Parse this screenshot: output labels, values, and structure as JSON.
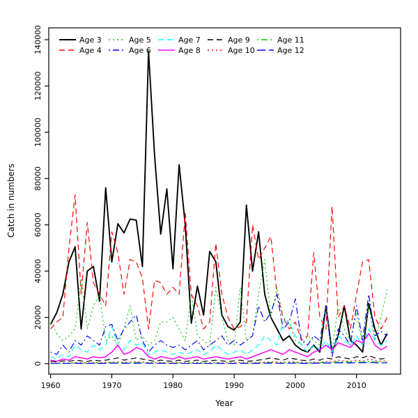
{
  "chart_data": {
    "type": "line",
    "title": "",
    "xlabel": "Year",
    "ylabel": "Catch in numbers",
    "xlim": [
      1960,
      2015
    ],
    "ylim": [
      0,
      140000
    ],
    "grid": false,
    "legend_position": "top-left",
    "x_ticks": [
      1960,
      1970,
      1980,
      1990,
      2000,
      2010
    ],
    "y_ticks": [
      0,
      20000,
      40000,
      60000,
      80000,
      100000,
      120000,
      140000
    ],
    "x": [
      1960,
      1961,
      1962,
      1963,
      1964,
      1965,
      1966,
      1967,
      1968,
      1969,
      1970,
      1971,
      1972,
      1973,
      1974,
      1975,
      1976,
      1977,
      1978,
      1979,
      1980,
      1981,
      1982,
      1983,
      1984,
      1985,
      1986,
      1987,
      1988,
      1989,
      1990,
      1991,
      1992,
      1993,
      1994,
      1995,
      1996,
      1997,
      1998,
      1999,
      2000,
      2001,
      2002,
      2003,
      2004,
      2005,
      2006,
      2007,
      2008,
      2009,
      2010,
      2011,
      2012,
      2013,
      2014,
      2015
    ],
    "series": [
      {
        "name": "Age 3",
        "color": "#000000",
        "dash": "solid",
        "values": [
          17000,
          22000,
          30000,
          44000,
          50500,
          15000,
          40000,
          42000,
          27000,
          76000,
          44000,
          60500,
          56500,
          62500,
          62000,
          42000,
          135000,
          90000,
          56000,
          75500,
          41000,
          86000,
          60000,
          17500,
          33500,
          21000,
          48500,
          44000,
          21000,
          16000,
          14500,
          18000,
          68500,
          40000,
          57000,
          30000,
          20000,
          15000,
          10000,
          12000,
          8000,
          6000,
          5000,
          8000,
          5000,
          25000,
          5000,
          12000,
          25000,
          10000,
          8000,
          5000,
          26000,
          15000,
          8000,
          13000
        ]
      },
      {
        "name": "Age 4",
        "color": "#FF0000",
        "dash": "dashed",
        "values": [
          15000,
          18000,
          20000,
          50000,
          73000,
          30000,
          61000,
          35000,
          30000,
          25000,
          57000,
          48000,
          30000,
          45000,
          44000,
          37000,
          15000,
          36000,
          35000,
          30000,
          33000,
          30000,
          65000,
          30000,
          25000,
          15000,
          18000,
          52000,
          30000,
          20000,
          15000,
          16000,
          18000,
          60000,
          45000,
          50000,
          55000,
          30000,
          20000,
          15000,
          18000,
          10000,
          12000,
          48000,
          20000,
          15000,
          68000,
          20000,
          25000,
          15000,
          30000,
          44000,
          45000,
          20000,
          15000,
          20000
        ]
      },
      {
        "name": "Age 5",
        "color": "#00CD00",
        "dash": "dotted",
        "values": [
          18000,
          13000,
          10000,
          12000,
          15000,
          37000,
          15000,
          25000,
          30000,
          10000,
          12000,
          8000,
          15000,
          25000,
          10000,
          12000,
          8000,
          10000,
          18000,
          18000,
          20000,
          15000,
          10000,
          30000,
          12000,
          10000,
          8000,
          33000,
          20000,
          10000,
          8000,
          33000,
          10000,
          12000,
          30000,
          45000,
          20000,
          33000,
          20000,
          18000,
          10000,
          8000,
          12000,
          10000,
          8000,
          25000,
          5000,
          25000,
          15000,
          10000,
          22000,
          8000,
          25000,
          10000,
          20000,
          32000
        ]
      },
      {
        "name": "Age 6",
        "color": "#0000FF",
        "dash": "dashdot",
        "values": [
          5000,
          4000,
          8000,
          5000,
          10000,
          8000,
          12000,
          10000,
          8000,
          16000,
          17000,
          10000,
          15000,
          18000,
          21000,
          10000,
          5000,
          8000,
          10000,
          8000,
          7000,
          8000,
          6000,
          8000,
          10000,
          6000,
          8000,
          10000,
          12000,
          8000,
          10000,
          8000,
          10000,
          12000,
          25000,
          18000,
          22000,
          30000,
          15000,
          18000,
          28000,
          10000,
          8000,
          12000,
          10000,
          25000,
          3000,
          15000,
          12000,
          8000,
          25000,
          10000,
          30000,
          12000,
          14000,
          12000
        ]
      },
      {
        "name": "Age 7",
        "color": "#00FFFF",
        "dash": "dashed",
        "values": [
          3000,
          2000,
          4000,
          3000,
          8000,
          6000,
          5000,
          8000,
          6000,
          8000,
          16000,
          8000,
          6000,
          10000,
          8000,
          9000,
          4000,
          5000,
          6000,
          5000,
          4000,
          5000,
          4000,
          5000,
          6000,
          4000,
          5000,
          8000,
          6000,
          4000,
          5000,
          6000,
          4000,
          6000,
          8000,
          12000,
          10000,
          8000,
          18000,
          18000,
          12000,
          8000,
          5000,
          8000,
          6000,
          10000,
          5000,
          12000,
          10000,
          8000,
          12000,
          8000,
          15000,
          10000,
          8000,
          10000
        ]
      },
      {
        "name": "Age 8",
        "color": "#FF00FF",
        "dash": "solid",
        "values": [
          1500,
          1000,
          2000,
          1500,
          3000,
          2500,
          2000,
          3000,
          2500,
          3000,
          5000,
          8000,
          4000,
          5000,
          7000,
          6000,
          3000,
          2000,
          3000,
          2500,
          2000,
          3000,
          2000,
          2500,
          3000,
          2000,
          2500,
          3000,
          2500,
          2000,
          2500,
          3000,
          2000,
          3000,
          4000,
          5000,
          6000,
          5000,
          4000,
          6000,
          5000,
          4000,
          3000,
          5000,
          6000,
          8000,
          6000,
          9000,
          8000,
          7000,
          10000,
          9000,
          13000,
          8000,
          6000,
          7500
        ]
      },
      {
        "name": "Age 9",
        "color": "#000000",
        "dash": "dashed",
        "values": [
          1000,
          800,
          1200,
          1000,
          1500,
          1200,
          1000,
          1500,
          1200,
          1500,
          2000,
          2500,
          1500,
          2000,
          2500,
          2000,
          1500,
          1000,
          1500,
          1200,
          1000,
          1500,
          1000,
          1200,
          1500,
          1000,
          1200,
          1500,
          1200,
          1000,
          1200,
          1500,
          1000,
          1200,
          1500,
          2000,
          2500,
          2000,
          1500,
          2500,
          2000,
          1500,
          1200,
          2000,
          1500,
          2500,
          2000,
          3000,
          2500,
          2000,
          3000,
          2500,
          3500,
          2500,
          2000,
          2500
        ]
      },
      {
        "name": "Age 10",
        "color": "#FF0000",
        "dash": "dotted",
        "values": [
          300,
          250,
          400,
          300,
          500,
          400,
          350,
          500,
          400,
          500,
          700,
          800,
          500,
          700,
          800,
          700,
          500,
          400,
          500,
          400,
          350,
          500,
          350,
          400,
          500,
          350,
          400,
          500,
          400,
          350,
          400,
          500,
          350,
          400,
          500,
          700,
          800,
          700,
          500,
          800,
          700,
          500,
          400,
          700,
          500,
          1000,
          800,
          1500,
          1200,
          1000,
          1500,
          1200,
          2000,
          1500,
          1000,
          1200
        ]
      },
      {
        "name": "Age 11",
        "color": "#00CD00",
        "dash": "dashdot",
        "values": [
          200,
          150,
          250,
          200,
          300,
          250,
          200,
          300,
          250,
          300,
          400,
          500,
          300,
          400,
          500,
          400,
          300,
          250,
          300,
          250,
          200,
          300,
          200,
          250,
          300,
          200,
          250,
          300,
          250,
          200,
          250,
          300,
          200,
          250,
          300,
          400,
          500,
          400,
          300,
          500,
          400,
          300,
          250,
          400,
          300,
          600,
          500,
          800,
          700,
          600,
          800,
          700,
          1000,
          800,
          600,
          700
        ]
      },
      {
        "name": "Age 12",
        "color": "#0000FF",
        "dash": "longdash",
        "values": [
          100,
          80,
          120,
          100,
          150,
          120,
          100,
          150,
          120,
          150,
          200,
          250,
          150,
          200,
          250,
          200,
          150,
          100,
          150,
          120,
          100,
          150,
          100,
          120,
          150,
          100,
          120,
          150,
          120,
          100,
          120,
          150,
          100,
          120,
          150,
          200,
          250,
          200,
          150,
          250,
          200,
          150,
          120,
          200,
          150,
          300,
          250,
          400,
          350,
          300,
          400,
          350,
          500,
          400,
          300,
          350
        ]
      }
    ]
  }
}
